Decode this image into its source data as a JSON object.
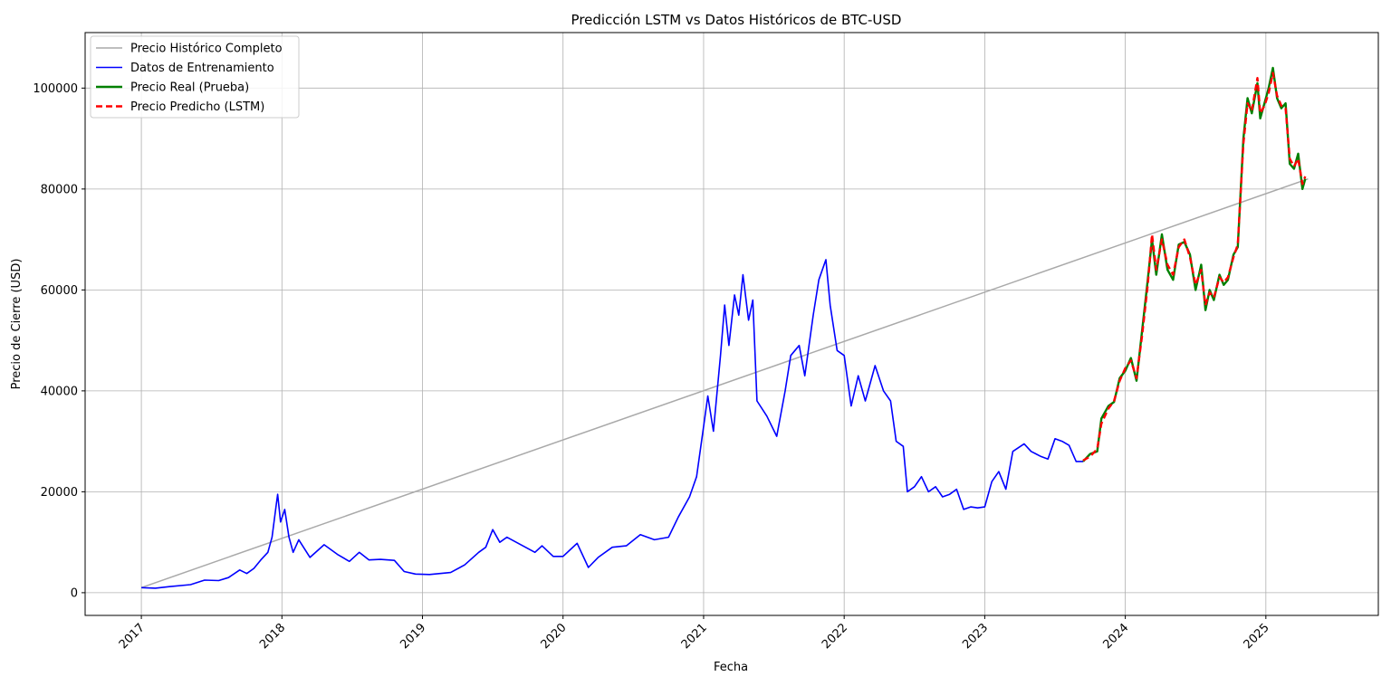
{
  "chart_data": {
    "type": "line",
    "title": "Predicción LSTM vs Datos Históricos de BTC-USD",
    "xlabel": "Fecha",
    "ylabel": "Precio de Cierre (USD)",
    "xlim": [
      2016.6,
      2025.8
    ],
    "ylim": [
      -4500,
      111000
    ],
    "grid": true,
    "legend_position": "top-left",
    "x_ticks": [
      2017,
      2018,
      2019,
      2020,
      2021,
      2022,
      2023,
      2024,
      2025
    ],
    "x_tick_labels": [
      "2017",
      "2018",
      "2019",
      "2020",
      "2021",
      "2022",
      "2023",
      "2024",
      "2025"
    ],
    "y_ticks": [
      0,
      20000,
      40000,
      60000,
      80000,
      100000
    ],
    "y_tick_labels": [
      "0",
      "20000",
      "40000",
      "60000",
      "80000",
      "100000"
    ],
    "series": [
      {
        "name": "Precio Histórico Completo",
        "color": "#a9a9a9",
        "style": "solid",
        "points": [
          [
            2017.0,
            1000
          ],
          [
            2025.3,
            82000
          ]
        ]
      },
      {
        "name": "Datos de Entrenamiento",
        "color": "#0000ff",
        "style": "solid",
        "points": [
          [
            2017.0,
            1000
          ],
          [
            2017.1,
            900
          ],
          [
            2017.2,
            1200
          ],
          [
            2017.35,
            1600
          ],
          [
            2017.45,
            2500
          ],
          [
            2017.55,
            2400
          ],
          [
            2017.62,
            3000
          ],
          [
            2017.7,
            4500
          ],
          [
            2017.75,
            3800
          ],
          [
            2017.8,
            4800
          ],
          [
            2017.85,
            6500
          ],
          [
            2017.9,
            8000
          ],
          [
            2017.93,
            11000
          ],
          [
            2017.96,
            17500
          ],
          [
            2017.97,
            19500
          ],
          [
            2017.99,
            14000
          ],
          [
            2018.02,
            16500
          ],
          [
            2018.05,
            11000
          ],
          [
            2018.08,
            8000
          ],
          [
            2018.12,
            10500
          ],
          [
            2018.2,
            7000
          ],
          [
            2018.3,
            9500
          ],
          [
            2018.4,
            7500
          ],
          [
            2018.48,
            6200
          ],
          [
            2018.55,
            8000
          ],
          [
            2018.62,
            6500
          ],
          [
            2018.7,
            6600
          ],
          [
            2018.8,
            6400
          ],
          [
            2018.87,
            4200
          ],
          [
            2018.95,
            3700
          ],
          [
            2019.05,
            3600
          ],
          [
            2019.2,
            4000
          ],
          [
            2019.3,
            5500
          ],
          [
            2019.4,
            8000
          ],
          [
            2019.45,
            9000
          ],
          [
            2019.5,
            12500
          ],
          [
            2019.55,
            10000
          ],
          [
            2019.6,
            11000
          ],
          [
            2019.7,
            9500
          ],
          [
            2019.8,
            8000
          ],
          [
            2019.85,
            9300
          ],
          [
            2019.93,
            7200
          ],
          [
            2020.0,
            7200
          ],
          [
            2020.1,
            9800
          ],
          [
            2020.18,
            5000
          ],
          [
            2020.25,
            7000
          ],
          [
            2020.35,
            9000
          ],
          [
            2020.45,
            9300
          ],
          [
            2020.55,
            11500
          ],
          [
            2020.65,
            10500
          ],
          [
            2020.75,
            11000
          ],
          [
            2020.82,
            15000
          ],
          [
            2020.9,
            19000
          ],
          [
            2020.95,
            23000
          ],
          [
            2021.0,
            33000
          ],
          [
            2021.03,
            39000
          ],
          [
            2021.07,
            32000
          ],
          [
            2021.12,
            47000
          ],
          [
            2021.15,
            57000
          ],
          [
            2021.18,
            49000
          ],
          [
            2021.22,
            59000
          ],
          [
            2021.25,
            55000
          ],
          [
            2021.28,
            63000
          ],
          [
            2021.32,
            54000
          ],
          [
            2021.35,
            58000
          ],
          [
            2021.38,
            38000
          ],
          [
            2021.45,
            35000
          ],
          [
            2021.52,
            31000
          ],
          [
            2021.58,
            40000
          ],
          [
            2021.62,
            47000
          ],
          [
            2021.68,
            49000
          ],
          [
            2021.72,
            43000
          ],
          [
            2021.78,
            55000
          ],
          [
            2021.82,
            62000
          ],
          [
            2021.87,
            66000
          ],
          [
            2021.9,
            57000
          ],
          [
            2021.95,
            48000
          ],
          [
            2022.0,
            47000
          ],
          [
            2022.05,
            37000
          ],
          [
            2022.1,
            43000
          ],
          [
            2022.15,
            38000
          ],
          [
            2022.22,
            45000
          ],
          [
            2022.28,
            40000
          ],
          [
            2022.33,
            38000
          ],
          [
            2022.37,
            30000
          ],
          [
            2022.42,
            29000
          ],
          [
            2022.45,
            20000
          ],
          [
            2022.5,
            21000
          ],
          [
            2022.55,
            23000
          ],
          [
            2022.6,
            20000
          ],
          [
            2022.65,
            21000
          ],
          [
            2022.7,
            19000
          ],
          [
            2022.75,
            19500
          ],
          [
            2022.8,
            20500
          ],
          [
            2022.85,
            16500
          ],
          [
            2022.9,
            17000
          ],
          [
            2022.95,
            16800
          ],
          [
            2023.0,
            17000
          ],
          [
            2023.05,
            22000
          ],
          [
            2023.1,
            24000
          ],
          [
            2023.15,
            20500
          ],
          [
            2023.2,
            28000
          ],
          [
            2023.28,
            29500
          ],
          [
            2023.33,
            28000
          ],
          [
            2023.4,
            27000
          ],
          [
            2023.45,
            26500
          ],
          [
            2023.5,
            30500
          ],
          [
            2023.55,
            30000
          ],
          [
            2023.6,
            29200
          ],
          [
            2023.65,
            26000
          ],
          [
            2023.7,
            26000
          ]
        ]
      },
      {
        "name": "Precio Real (Prueba)",
        "color": "#008000",
        "style": "solid",
        "points": [
          [
            2023.7,
            26000
          ],
          [
            2023.75,
            27500
          ],
          [
            2023.8,
            28000
          ],
          [
            2023.83,
            34500
          ],
          [
            2023.88,
            37000
          ],
          [
            2023.92,
            37800
          ],
          [
            2023.96,
            42500
          ],
          [
            2024.0,
            44000
          ],
          [
            2024.04,
            46500
          ],
          [
            2024.08,
            42000
          ],
          [
            2024.12,
            52000
          ],
          [
            2024.16,
            62000
          ],
          [
            2024.19,
            70000
          ],
          [
            2024.22,
            63000
          ],
          [
            2024.26,
            71000
          ],
          [
            2024.3,
            64000
          ],
          [
            2024.34,
            62000
          ],
          [
            2024.38,
            69000
          ],
          [
            2024.42,
            69500
          ],
          [
            2024.46,
            67000
          ],
          [
            2024.5,
            60000
          ],
          [
            2024.54,
            65000
          ],
          [
            2024.57,
            56000
          ],
          [
            2024.6,
            60000
          ],
          [
            2024.63,
            58000
          ],
          [
            2024.67,
            63000
          ],
          [
            2024.7,
            61000
          ],
          [
            2024.73,
            62000
          ],
          [
            2024.77,
            67000
          ],
          [
            2024.8,
            68500
          ],
          [
            2024.84,
            90000
          ],
          [
            2024.87,
            98000
          ],
          [
            2024.9,
            95000
          ],
          [
            2024.94,
            101000
          ],
          [
            2024.96,
            94000
          ],
          [
            2024.99,
            97000
          ],
          [
            2025.02,
            100000
          ],
          [
            2025.05,
            104000
          ],
          [
            2025.08,
            98000
          ],
          [
            2025.11,
            96000
          ],
          [
            2025.14,
            97000
          ],
          [
            2025.17,
            85000
          ],
          [
            2025.2,
            84000
          ],
          [
            2025.23,
            87000
          ],
          [
            2025.26,
            80000
          ],
          [
            2025.28,
            82000
          ]
        ]
      },
      {
        "name": "Precio Predicho (LSTM)",
        "color": "#ff0000",
        "style": "dashed",
        "points": [
          [
            2023.7,
            26200
          ],
          [
            2023.75,
            27000
          ],
          [
            2023.8,
            28500
          ],
          [
            2023.83,
            33500
          ],
          [
            2023.88,
            36500
          ],
          [
            2023.92,
            38000
          ],
          [
            2023.96,
            42000
          ],
          [
            2024.0,
            44500
          ],
          [
            2024.04,
            46000
          ],
          [
            2024.08,
            42500
          ],
          [
            2024.12,
            51000
          ],
          [
            2024.16,
            61000
          ],
          [
            2024.19,
            71000
          ],
          [
            2024.22,
            64000
          ],
          [
            2024.26,
            70000
          ],
          [
            2024.3,
            65000
          ],
          [
            2024.34,
            63000
          ],
          [
            2024.38,
            68500
          ],
          [
            2024.42,
            70000
          ],
          [
            2024.46,
            66500
          ],
          [
            2024.5,
            61000
          ],
          [
            2024.54,
            64000
          ],
          [
            2024.57,
            57000
          ],
          [
            2024.6,
            59500
          ],
          [
            2024.63,
            58500
          ],
          [
            2024.67,
            62500
          ],
          [
            2024.7,
            61500
          ],
          [
            2024.73,
            62500
          ],
          [
            2024.77,
            66500
          ],
          [
            2024.8,
            69000
          ],
          [
            2024.84,
            89000
          ],
          [
            2024.87,
            97000
          ],
          [
            2024.9,
            95500
          ],
          [
            2024.94,
            102000
          ],
          [
            2024.96,
            95000
          ],
          [
            2024.99,
            96500
          ],
          [
            2025.02,
            99000
          ],
          [
            2025.05,
            103000
          ],
          [
            2025.08,
            98500
          ],
          [
            2025.11,
            96500
          ],
          [
            2025.14,
            96000
          ],
          [
            2025.17,
            86000
          ],
          [
            2025.2,
            84500
          ],
          [
            2025.23,
            86000
          ],
          [
            2025.26,
            81000
          ],
          [
            2025.28,
            82500
          ]
        ]
      }
    ]
  }
}
